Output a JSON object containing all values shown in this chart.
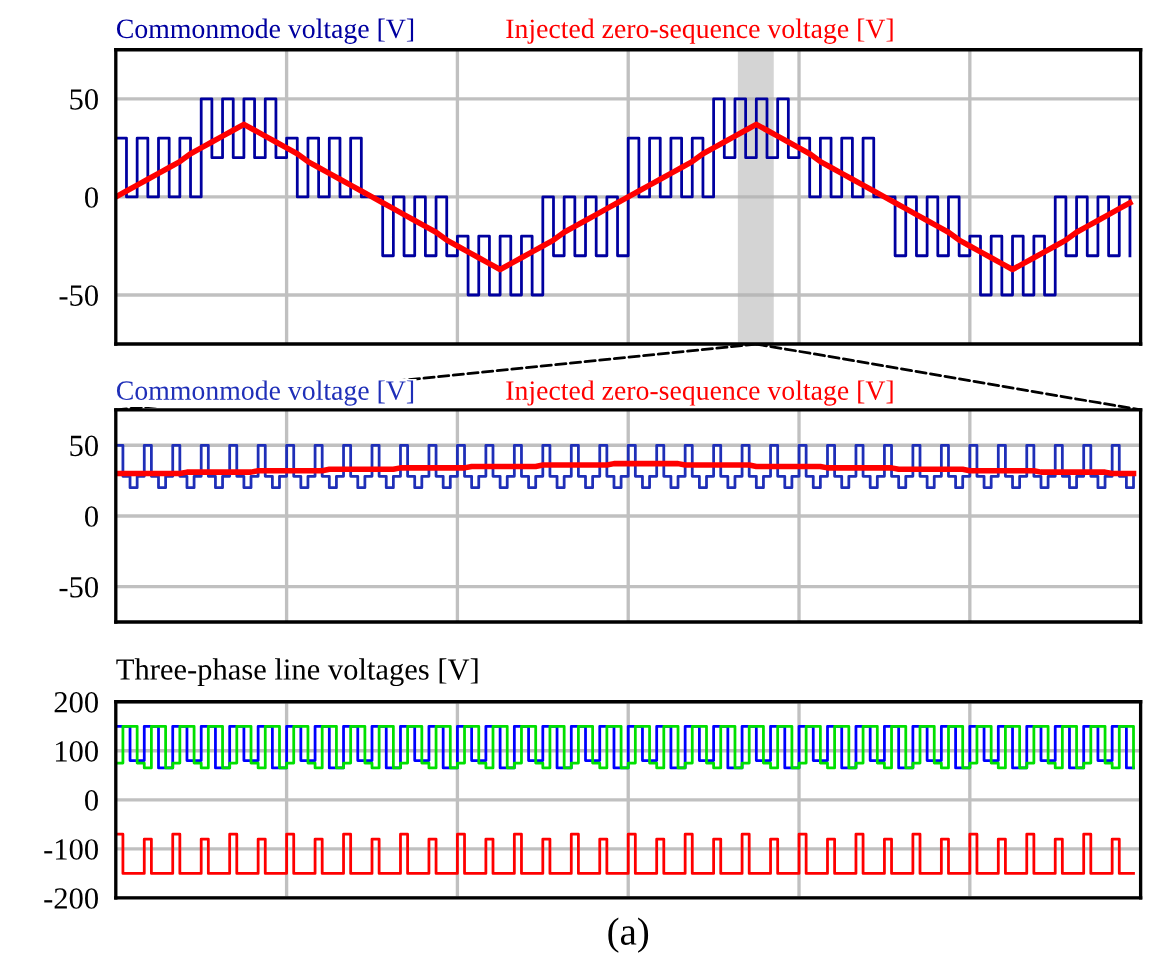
{
  "chart_data": [
    {
      "type": "step",
      "legend": "top",
      "grid": true,
      "tick_labels": "y",
      "ylim": [
        -75,
        75
      ],
      "yticks": [
        -50,
        0,
        50
      ],
      "categories": [
        null,
        null,
        null,
        null,
        null,
        null,
        null,
        null,
        null,
        null,
        null,
        null,
        null,
        null,
        null,
        null,
        null,
        null,
        null,
        null,
        null,
        null,
        null,
        null,
        null,
        null,
        null,
        null,
        null,
        null,
        null,
        null,
        null,
        null,
        null,
        null,
        null,
        null,
        null,
        null,
        null,
        null,
        null,
        null,
        null,
        null,
        null,
        null,
        null,
        null,
        null,
        null,
        null,
        null,
        null,
        null,
        null,
        null,
        null,
        null,
        null,
        null,
        null,
        null,
        null,
        null,
        null,
        null,
        null,
        null,
        null,
        null,
        null,
        null,
        null,
        null,
        null,
        null,
        null,
        null,
        null,
        null,
        null,
        null,
        null,
        null,
        null,
        null,
        null,
        null,
        null,
        null,
        null,
        null,
        null,
        null
      ],
      "series": [
        {
          "name": "Commonmode voltage [V]",
          "color": "#0000a0",
          "type": "step",
          "values": [
            30,
            0,
            30,
            0,
            30,
            0,
            30,
            0,
            50,
            20,
            50,
            20,
            50,
            20,
            50,
            20,
            30,
            0,
            30,
            0,
            30,
            0,
            30,
            0,
            0,
            -30,
            0,
            -30,
            0,
            -30,
            0,
            -30,
            -20,
            -50,
            -20,
            -50,
            -20,
            -50,
            -20,
            -50,
            0,
            -30,
            0,
            -30,
            0,
            -30,
            0,
            -30,
            30,
            0,
            30,
            0,
            30,
            0,
            30,
            0,
            50,
            20,
            50,
            20,
            50,
            20,
            50,
            20,
            30,
            0,
            30,
            0,
            30,
            0,
            30,
            0,
            0,
            -30,
            0,
            -30,
            0,
            -30,
            0,
            -30,
            -20,
            -50,
            -20,
            -50,
            -20,
            -50,
            -20,
            -50,
            0,
            -30,
            0,
            -30,
            0,
            -30,
            0,
            -30
          ]
        },
        {
          "name": "Injected zero-sequence voltage [V]",
          "color": "#ff0000",
          "type": "line",
          "values": [
            0,
            3,
            6,
            9,
            12,
            15,
            18,
            22,
            25,
            28,
            31,
            34,
            37,
            34,
            31,
            28,
            25,
            22,
            18,
            15,
            12,
            9,
            6,
            3,
            0,
            -3,
            -6,
            -9,
            -12,
            -15,
            -18,
            -22,
            -25,
            -28,
            -31,
            -34,
            -37,
            -34,
            -31,
            -28,
            -25,
            -22,
            -18,
            -15,
            -12,
            -9,
            -6,
            -3,
            0,
            3,
            6,
            9,
            12,
            15,
            18,
            22,
            25,
            28,
            31,
            34,
            37,
            34,
            31,
            28,
            25,
            22,
            18,
            15,
            12,
            9,
            6,
            3,
            0,
            -3,
            -6,
            -9,
            -12,
            -15,
            -18,
            -22,
            -25,
            -28,
            -31,
            -34,
            -37,
            -34,
            -31,
            -28,
            -25,
            -22,
            -18,
            -15,
            -12,
            -9,
            -6,
            -3
          ]
        }
      ]
    },
    {
      "type": "step",
      "legend": "top",
      "grid": true,
      "tick_labels": "y",
      "ylim": [
        -75,
        75
      ],
      "yticks": [
        -50,
        0,
        50
      ],
      "categories": [
        null,
        null,
        null,
        null,
        null,
        null,
        null,
        null,
        null,
        null,
        null,
        null,
        null,
        null,
        null,
        null,
        null,
        null,
        null,
        null,
        null,
        null,
        null,
        null,
        null,
        null,
        null,
        null,
        null,
        null,
        null,
        null,
        null,
        null,
        null,
        null,
        null,
        null,
        null,
        null,
        null,
        null,
        null,
        null,
        null,
        null,
        null,
        null,
        null,
        null,
        null,
        null,
        null,
        null,
        null,
        null,
        null,
        null,
        null,
        null,
        null,
        null,
        null,
        null,
        null,
        null,
        null,
        null,
        null,
        null,
        null,
        null,
        null,
        null,
        null,
        null,
        null,
        null,
        null,
        null,
        null,
        null,
        null,
        null,
        null,
        null,
        null,
        null,
        null,
        null,
        null,
        null,
        null,
        null,
        null,
        null,
        null,
        null,
        null,
        null,
        null,
        null,
        null,
        null,
        null,
        null,
        null,
        null,
        null,
        null,
        null,
        null,
        null,
        null,
        null,
        null,
        null,
        null,
        null,
        null,
        null,
        null,
        null,
        null,
        null,
        null,
        null,
        null,
        null,
        null,
        null,
        null,
        null,
        null,
        null,
        null,
        null,
        null,
        null,
        null,
        null,
        null,
        null,
        null
      ],
      "series": [
        {
          "name": "Commonmode voltage [V]",
          "color": "#1f2fb8",
          "type": "step",
          "values": [
            50,
            28,
            20,
            28,
            50,
            28,
            20,
            28,
            50,
            28,
            20,
            28,
            50,
            28,
            20,
            28,
            50,
            28,
            20,
            28,
            50,
            28,
            20,
            28,
            50,
            28,
            20,
            28,
            50,
            28,
            20,
            28,
            50,
            28,
            20,
            28,
            50,
            28,
            20,
            28,
            50,
            28,
            20,
            28,
            50,
            28,
            20,
            28,
            50,
            28,
            20,
            28,
            50,
            28,
            20,
            28,
            50,
            28,
            20,
            28,
            50,
            28,
            20,
            28,
            50,
            28,
            20,
            28,
            50,
            28,
            20,
            28,
            50,
            28,
            20,
            28,
            50,
            28,
            20,
            28,
            50,
            28,
            20,
            28,
            50,
            28,
            20,
            28,
            50,
            28,
            20,
            28,
            50,
            28,
            20,
            28,
            50,
            28,
            20,
            28,
            50,
            28,
            20,
            28,
            50,
            28,
            20,
            28,
            50,
            28,
            20,
            28,
            50,
            28,
            20,
            28,
            50,
            28,
            20,
            28,
            50,
            28,
            20,
            28,
            50,
            28,
            20,
            28,
            50,
            28,
            20,
            28,
            50,
            28,
            20,
            28,
            50,
            28,
            20,
            28,
            50,
            28,
            20,
            28
          ]
        },
        {
          "name": "Injected zero-sequence voltage [V]",
          "color": "#ff0000",
          "type": "line",
          "values": [
            30,
            30,
            30,
            30,
            30,
            30,
            30,
            30,
            30,
            30,
            31,
            31,
            31,
            31,
            31,
            31,
            31,
            31,
            31,
            31,
            32,
            32,
            32,
            32,
            32,
            32,
            32,
            32,
            32,
            32,
            33,
            33,
            33,
            33,
            33,
            33,
            33,
            33,
            33,
            33,
            34,
            34,
            34,
            34,
            34,
            34,
            34,
            34,
            34,
            34,
            35,
            35,
            35,
            35,
            35,
            35,
            35,
            35,
            35,
            35,
            36,
            36,
            36,
            36,
            36,
            36,
            36,
            36,
            36,
            36,
            37,
            37,
            37,
            37,
            37,
            37,
            37,
            37,
            37,
            37,
            36,
            36,
            36,
            36,
            36,
            36,
            36,
            36,
            36,
            36,
            35,
            35,
            35,
            35,
            35,
            35,
            35,
            35,
            35,
            35,
            34,
            34,
            34,
            34,
            34,
            34,
            34,
            34,
            34,
            34,
            33,
            33,
            33,
            33,
            33,
            33,
            33,
            33,
            33,
            33,
            32,
            32,
            32,
            32,
            32,
            32,
            32,
            32,
            32,
            32,
            31,
            31,
            31,
            31,
            31,
            31,
            31,
            31,
            31,
            31,
            30,
            30,
            30,
            30
          ]
        }
      ]
    },
    {
      "type": "step",
      "title": "Three-phase line voltages [V]",
      "annotations": [
        "(a)"
      ],
      "grid": true,
      "tick_labels": "y",
      "ylim": [
        -200,
        200
      ],
      "yticks": [
        -200,
        -100,
        0,
        100,
        200
      ],
      "categories": [
        null,
        null,
        null,
        null,
        null,
        null,
        null,
        null,
        null,
        null,
        null,
        null,
        null,
        null,
        null,
        null,
        null,
        null,
        null,
        null,
        null,
        null,
        null,
        null,
        null,
        null,
        null,
        null,
        null,
        null,
        null,
        null,
        null,
        null,
        null,
        null,
        null,
        null,
        null,
        null,
        null,
        null,
        null,
        null,
        null,
        null,
        null,
        null,
        null,
        null,
        null,
        null,
        null,
        null,
        null,
        null,
        null,
        null,
        null,
        null,
        null,
        null,
        null,
        null,
        null,
        null,
        null,
        null,
        null,
        null,
        null,
        null,
        null,
        null,
        null,
        null,
        null,
        null,
        null,
        null,
        null,
        null,
        null,
        null,
        null,
        null,
        null,
        null,
        null,
        null,
        null,
        null,
        null,
        null,
        null,
        null,
        null,
        null,
        null,
        null,
        null,
        null,
        null,
        null,
        null,
        null,
        null,
        null,
        null,
        null,
        null,
        null,
        null,
        null,
        null,
        null,
        null,
        null,
        null,
        null,
        null,
        null,
        null,
        null,
        null,
        null,
        null,
        null,
        null,
        null,
        null,
        null,
        null,
        null,
        null,
        null,
        null,
        null,
        null,
        null,
        null,
        null,
        null,
        null
      ],
      "series": [
        {
          "color": "#0000ff",
          "type": "step",
          "values": [
            150,
            150,
            80,
            80,
            150,
            150,
            65,
            65,
            150,
            150,
            80,
            80,
            150,
            150,
            65,
            65,
            150,
            150,
            80,
            80,
            150,
            150,
            65,
            65,
            150,
            150,
            80,
            80,
            150,
            150,
            65,
            65,
            150,
            150,
            80,
            80,
            150,
            150,
            65,
            65,
            150,
            150,
            80,
            80,
            150,
            150,
            65,
            65,
            150,
            150,
            80,
            80,
            150,
            150,
            65,
            65,
            150,
            150,
            80,
            80,
            150,
            150,
            65,
            65,
            150,
            150,
            80,
            80,
            150,
            150,
            65,
            65,
            150,
            150,
            80,
            80,
            150,
            150,
            65,
            65,
            150,
            150,
            80,
            80,
            150,
            150,
            65,
            65,
            150,
            150,
            80,
            80,
            150,
            150,
            65,
            65,
            150,
            150,
            80,
            80,
            150,
            150,
            65,
            65,
            150,
            150,
            80,
            80,
            150,
            150,
            65,
            65,
            150,
            150,
            80,
            80,
            150,
            150,
            65,
            65,
            150,
            150,
            80,
            80,
            150,
            150,
            65,
            65,
            150,
            150,
            80,
            80,
            150,
            150,
            65,
            65,
            150,
            150,
            80,
            80,
            150,
            150,
            65,
            65
          ]
        },
        {
          "color": "#00e000",
          "type": "step",
          "values": [
            75,
            150,
            150,
            75,
            65,
            150,
            150,
            65,
            75,
            150,
            150,
            75,
            65,
            150,
            150,
            65,
            75,
            150,
            150,
            75,
            65,
            150,
            150,
            65,
            75,
            150,
            150,
            75,
            65,
            150,
            150,
            65,
            75,
            150,
            150,
            75,
            65,
            150,
            150,
            65,
            75,
            150,
            150,
            75,
            65,
            150,
            150,
            65,
            75,
            150,
            150,
            75,
            65,
            150,
            150,
            65,
            75,
            150,
            150,
            75,
            65,
            150,
            150,
            65,
            75,
            150,
            150,
            75,
            65,
            150,
            150,
            65,
            75,
            150,
            150,
            75,
            65,
            150,
            150,
            65,
            75,
            150,
            150,
            75,
            65,
            150,
            150,
            65,
            75,
            150,
            150,
            75,
            65,
            150,
            150,
            65,
            75,
            150,
            150,
            75,
            65,
            150,
            150,
            65,
            75,
            150,
            150,
            75,
            65,
            150,
            150,
            65,
            75,
            150,
            150,
            75,
            65,
            150,
            150,
            65,
            75,
            150,
            150,
            75,
            65,
            150,
            150,
            65,
            75,
            150,
            150,
            75,
            65,
            150,
            150,
            65,
            75,
            150,
            150,
            75,
            65,
            150,
            150,
            65
          ]
        },
        {
          "color": "#ff0000",
          "type": "step",
          "values": [
            -70,
            -150,
            -150,
            -150,
            -80,
            -150,
            -150,
            -150,
            -70,
            -150,
            -150,
            -150,
            -80,
            -150,
            -150,
            -150,
            -70,
            -150,
            -150,
            -150,
            -80,
            -150,
            -150,
            -150,
            -70,
            -150,
            -150,
            -150,
            -80,
            -150,
            -150,
            -150,
            -70,
            -150,
            -150,
            -150,
            -80,
            -150,
            -150,
            -150,
            -70,
            -150,
            -150,
            -150,
            -80,
            -150,
            -150,
            -150,
            -70,
            -150,
            -150,
            -150,
            -80,
            -150,
            -150,
            -150,
            -70,
            -150,
            -150,
            -150,
            -80,
            -150,
            -150,
            -150,
            -70,
            -150,
            -150,
            -150,
            -80,
            -150,
            -150,
            -150,
            -70,
            -150,
            -150,
            -150,
            -80,
            -150,
            -150,
            -150,
            -70,
            -150,
            -150,
            -150,
            -80,
            -150,
            -150,
            -150,
            -70,
            -150,
            -150,
            -150,
            -80,
            -150,
            -150,
            -150,
            -70,
            -150,
            -150,
            -150,
            -80,
            -150,
            -150,
            -150,
            -70,
            -150,
            -150,
            -150,
            -80,
            -150,
            -150,
            -150,
            -70,
            -150,
            -150,
            -150,
            -80,
            -150,
            -150,
            -150,
            -70,
            -150,
            -150,
            -150,
            -80,
            -150,
            -150,
            -150,
            -70,
            -150,
            -150,
            -150,
            -80,
            -150,
            -150,
            -150,
            -70,
            -150,
            -150,
            -150,
            -80,
            -150,
            -150,
            -150
          ]
        }
      ]
    }
  ]
}
